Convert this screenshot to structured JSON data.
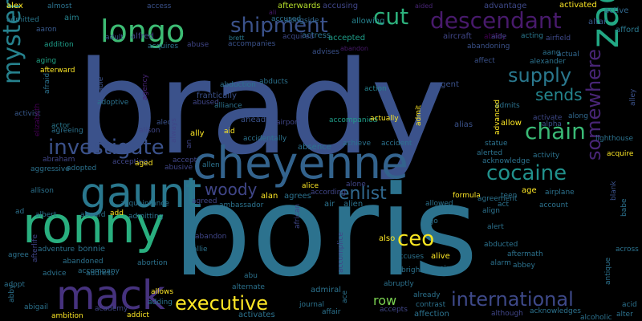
{
  "background": "#000000",
  "words": [
    {
      "text": "brady",
      "color": "#3b528b"
    },
    {
      "text": "boris",
      "color": "#2c728e"
    },
    {
      "text": "cheyenne",
      "color": "#33638d"
    },
    {
      "text": "ronny",
      "color": "#29af7f"
    },
    {
      "text": "mack",
      "color": "#46327e"
    },
    {
      "text": "gaunt",
      "color": "#2a788e"
    },
    {
      "text": "longo",
      "color": "#3dbc74"
    },
    {
      "text": "zach",
      "color": "#22a884"
    },
    {
      "text": "descendant",
      "color": "#481a6c"
    },
    {
      "text": "shipment",
      "color": "#3b528b"
    },
    {
      "text": "mysteriously",
      "color": "#26828e"
    },
    {
      "text": "investigate",
      "color": "#3b528b"
    },
    {
      "text": "cut",
      "color": "#2db27d"
    },
    {
      "text": "supply",
      "color": "#2a788e"
    },
    {
      "text": "sends",
      "color": "#24868e"
    },
    {
      "text": "chain",
      "color": "#3aba76"
    },
    {
      "text": "cocaine",
      "color": "#21918c"
    },
    {
      "text": "somewhere",
      "color": "#482576"
    },
    {
      "text": "executive",
      "color": "#fde725"
    },
    {
      "text": "international",
      "color": "#3e4989"
    },
    {
      "text": "ceo",
      "color": "#f8e621"
    },
    {
      "text": "enlist",
      "color": "#31688e"
    },
    {
      "text": "woody",
      "color": "#404688"
    },
    {
      "text": "row",
      "color": "#7ad151"
    },
    {
      "text": "alex",
      "color": "#fde725"
    },
    {
      "text": "admitted",
      "color": "#2a788e"
    },
    {
      "text": "almost",
      "color": "#2c728e"
    },
    {
      "text": "aim",
      "color": "#26828e"
    },
    {
      "text": "access",
      "color": "#3b528b"
    },
    {
      "text": "afterwards",
      "color": "#b5de2b"
    },
    {
      "text": "accusing",
      "color": "#404688"
    },
    {
      "text": "aided",
      "color": "#482576"
    },
    {
      "text": "advantage",
      "color": "#3e4989"
    },
    {
      "text": "activated",
      "color": "#fde725"
    },
    {
      "text": "active",
      "color": "#31688e"
    },
    {
      "text": "accused",
      "color": "#2c728e"
    },
    {
      "text": "ali",
      "color": "#481a6c"
    },
    {
      "text": "alongside",
      "color": "#31688e"
    },
    {
      "text": "allowing",
      "color": "#26828e"
    },
    {
      "text": "altar",
      "color": "#38598c"
    },
    {
      "text": "afford",
      "color": "#2a788e"
    },
    {
      "text": "aaron",
      "color": "#38598c"
    },
    {
      "text": "addition",
      "color": "#1f9e89"
    },
    {
      "text": "aging",
      "color": "#20a486"
    },
    {
      "text": "afterward",
      "color": "#fde725"
    },
    {
      "text": "adult",
      "color": "#3b528b"
    },
    {
      "text": "alfred",
      "color": "#414487"
    },
    {
      "text": "acquires",
      "color": "#2c728e"
    },
    {
      "text": "abuse",
      "color": "#404688"
    },
    {
      "text": "accompanies",
      "color": "#3b528b"
    },
    {
      "text": "brett",
      "color": "#2a788e"
    },
    {
      "text": "actress",
      "color": "#2c728e"
    },
    {
      "text": "acquired",
      "color": "#3e4989"
    },
    {
      "text": "accepted",
      "color": "#1f9e89"
    },
    {
      "text": "abandoning",
      "color": "#3b528b"
    },
    {
      "text": "aircraft",
      "color": "#404688"
    },
    {
      "text": "ability",
      "color": "#440154"
    },
    {
      "text": "aide",
      "color": "#3e4989"
    },
    {
      "text": "acting",
      "color": "#2a788e"
    },
    {
      "text": "airfield",
      "color": "#3e4989"
    },
    {
      "text": "aang",
      "color": "#2c728e"
    },
    {
      "text": "actual",
      "color": "#31688e"
    },
    {
      "text": "alexander",
      "color": "#2c728e"
    },
    {
      "text": "affect",
      "color": "#3b528b"
    },
    {
      "text": "advises",
      "color": "#3b528b"
    },
    {
      "text": "abandon",
      "color": "#481a6c"
    },
    {
      "text": "afraid",
      "color": "#2c728e"
    },
    {
      "text": "able",
      "color": "#3b528b"
    },
    {
      "text": "adoptive",
      "color": "#2c728e"
    },
    {
      "text": "agency",
      "color": "#482576"
    },
    {
      "text": "frantically",
      "color": "#3b528b"
    },
    {
      "text": "abused",
      "color": "#404688"
    },
    {
      "text": "alliance",
      "color": "#2c728e"
    },
    {
      "text": "abduction",
      "color": "#2c728e"
    },
    {
      "text": "abducts",
      "color": "#2c728e"
    },
    {
      "text": "action",
      "color": "#26828e"
    },
    {
      "text": "agent",
      "color": "#3b528b"
    },
    {
      "text": "admits",
      "color": "#2c728e"
    },
    {
      "text": "activate",
      "color": "#3e4989"
    },
    {
      "text": "along",
      "color": "#31688e"
    },
    {
      "text": "alpha",
      "color": "#3b528b"
    },
    {
      "text": "alley",
      "color": "#3b528b"
    },
    {
      "text": "activist",
      "color": "#38598c"
    },
    {
      "text": "actor",
      "color": "#2a788e"
    },
    {
      "text": "alec",
      "color": "#3b528b"
    },
    {
      "text": "alison",
      "color": "#404688"
    },
    {
      "text": "ally",
      "color": "#fde725"
    },
    {
      "text": "ahead",
      "color": "#3b528b"
    },
    {
      "text": "aid",
      "color": "#fde725"
    },
    {
      "text": "airport",
      "color": "#404688"
    },
    {
      "text": "accompanied",
      "color": "#1f9e89"
    },
    {
      "text": "actually",
      "color": "#fde725"
    },
    {
      "text": "admit",
      "color": "#fde725"
    },
    {
      "text": "alias",
      "color": "#3b528b"
    },
    {
      "text": "allow",
      "color": "#fde725"
    },
    {
      "text": "advanced",
      "color": "#fde725"
    },
    {
      "text": "statue",
      "color": "#2c728e"
    },
    {
      "text": "alerted",
      "color": "#2c728e"
    },
    {
      "text": "acknowledge",
      "color": "#2c728e"
    },
    {
      "text": "activity",
      "color": "#2c728e"
    },
    {
      "text": "lighthouse",
      "color": "#2c728e"
    },
    {
      "text": "acquire",
      "color": "#fde725"
    },
    {
      "text": "agreeing",
      "color": "#2c728e"
    },
    {
      "text": "elizabeth",
      "color": "#440154"
    },
    {
      "text": "abraham",
      "color": "#404688"
    },
    {
      "text": "aggressive",
      "color": "#2c728e"
    },
    {
      "text": "adopted",
      "color": "#2c728e"
    },
    {
      "text": "accepting",
      "color": "#404688"
    },
    {
      "text": "aged",
      "color": "#fde725"
    },
    {
      "text": "abusive",
      "color": "#404688"
    },
    {
      "text": "accept",
      "color": "#404688"
    },
    {
      "text": "always",
      "color": "#404688"
    },
    {
      "text": "allen",
      "color": "#2c728e"
    },
    {
      "text": "accidentally",
      "color": "#2c728e"
    },
    {
      "text": "absence",
      "color": "#2c728e"
    },
    {
      "text": "achieve",
      "color": "#2c728e"
    },
    {
      "text": "accident",
      "color": "#2c728e"
    },
    {
      "text": "an",
      "color": "#404688"
    },
    {
      "text": "allison",
      "color": "#2c728e"
    },
    {
      "text": "alan",
      "color": "#fde725"
    },
    {
      "text": "agrees",
      "color": "#2c728e"
    },
    {
      "text": "according",
      "color": "#404688"
    },
    {
      "text": "alice",
      "color": "#fde725"
    },
    {
      "text": "alone",
      "color": "#404688"
    },
    {
      "text": "formula",
      "color": "#fde725"
    },
    {
      "text": "teen",
      "color": "#2c728e"
    },
    {
      "text": "age",
      "color": "#fde725"
    },
    {
      "text": "airplane",
      "color": "#2c728e"
    },
    {
      "text": "blank",
      "color": "#3b528b"
    },
    {
      "text": "babe",
      "color": "#2c728e"
    },
    {
      "text": "acquaintance",
      "color": "#2c728e"
    },
    {
      "text": "agreed",
      "color": "#404688"
    },
    {
      "text": "ambassador",
      "color": "#2c728e"
    },
    {
      "text": "air",
      "color": "#2c728e"
    },
    {
      "text": "alien",
      "color": "#2c728e"
    },
    {
      "text": "allowed",
      "color": "#2c728e"
    },
    {
      "text": "agreement",
      "color": "#2c728e"
    },
    {
      "text": "act",
      "color": "#2c728e"
    },
    {
      "text": "account",
      "color": "#2c728e"
    },
    {
      "text": "align",
      "color": "#2c728e"
    },
    {
      "text": "ad",
      "color": "#2c728e"
    },
    {
      "text": "albert",
      "color": "#2c728e"
    },
    {
      "text": "aboard",
      "color": "#2c728e"
    },
    {
      "text": "add",
      "color": "#fde725"
    },
    {
      "text": "admitting",
      "color": "#2c728e"
    },
    {
      "text": "ago",
      "color": "#2c728e"
    },
    {
      "text": "alert",
      "color": "#2c728e"
    },
    {
      "text": "abandon",
      "color": "#404688"
    },
    {
      "text": "african",
      "color": "#404688"
    },
    {
      "text": "also",
      "color": "#fde725"
    },
    {
      "text": "abducted",
      "color": "#2c728e"
    },
    {
      "text": "aftermath",
      "color": "#2c728e"
    },
    {
      "text": "across",
      "color": "#2c728e"
    },
    {
      "text": "agree",
      "color": "#2c728e"
    },
    {
      "text": "afterlife",
      "color": "#404688"
    },
    {
      "text": "adventure",
      "color": "#2c728e"
    },
    {
      "text": "bonnie",
      "color": "#2c728e"
    },
    {
      "text": "allie",
      "color": "#2c728e"
    },
    {
      "text": "alive",
      "color": "#fde725"
    },
    {
      "text": "accuses",
      "color": "#2c728e"
    },
    {
      "text": "poison",
      "color": "#2c728e"
    },
    {
      "text": "abbey",
      "color": "#2c728e"
    },
    {
      "text": "abandoned",
      "color": "#2c728e"
    },
    {
      "text": "abortion",
      "color": "#2c728e"
    },
    {
      "text": "albright",
      "color": "#2c728e"
    },
    {
      "text": "alarm",
      "color": "#2c728e"
    },
    {
      "text": "antique",
      "color": "#2c728e"
    },
    {
      "text": "advice",
      "color": "#2c728e"
    },
    {
      "text": "accompany",
      "color": "#2c728e"
    },
    {
      "text": "address",
      "color": "#2c728e"
    },
    {
      "text": "abu",
      "color": "#2c728e"
    },
    {
      "text": "accomplice",
      "color": "#404688"
    },
    {
      "text": "abruptly",
      "color": "#2c728e"
    },
    {
      "text": "adopt",
      "color": "#2c728e"
    },
    {
      "text": "allows",
      "color": "#fde725"
    },
    {
      "text": "alternate",
      "color": "#2c728e"
    },
    {
      "text": "admiral",
      "color": "#2c728e"
    },
    {
      "text": "already",
      "color": "#2c728e"
    },
    {
      "text": "acid",
      "color": "#2c728e"
    },
    {
      "text": "abby",
      "color": "#2c728e"
    },
    {
      "text": "abigail",
      "color": "#2c728e"
    },
    {
      "text": "adding",
      "color": "#2c728e"
    },
    {
      "text": "ace",
      "color": "#2c728e"
    },
    {
      "text": "journal",
      "color": "#2c728e"
    },
    {
      "text": "contrast",
      "color": "#2c728e"
    },
    {
      "text": "although",
      "color": "#404688"
    },
    {
      "text": "acknowledges",
      "color": "#2c728e"
    },
    {
      "text": "alcoholic",
      "color": "#2c728e"
    },
    {
      "text": "alter",
      "color": "#2c728e"
    },
    {
      "text": "ambition",
      "color": "#fde725"
    },
    {
      "text": "academy",
      "color": "#404688"
    },
    {
      "text": "addict",
      "color": "#fde725"
    },
    {
      "text": "activates",
      "color": "#2c728e"
    },
    {
      "text": "affair",
      "color": "#2c728e"
    },
    {
      "text": "accepts",
      "color": "#404688"
    },
    {
      "text": "affection",
      "color": "#2c728e"
    }
  ]
}
